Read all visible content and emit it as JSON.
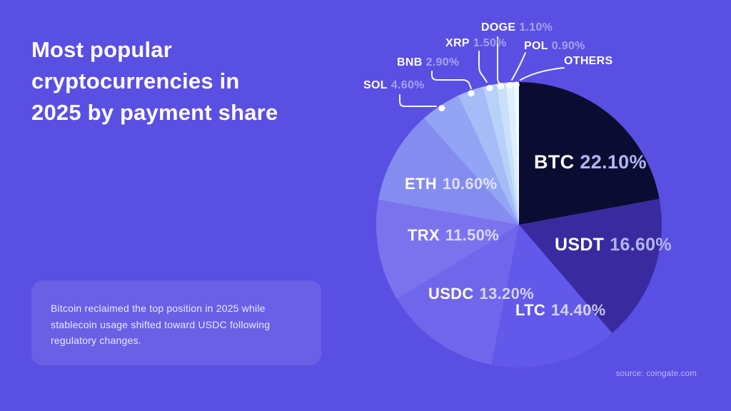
{
  "page": {
    "title_lines": [
      "Most popular",
      "cryptocurrencies in",
      "2025 by payment share"
    ],
    "note": "Bitcoin reclaimed the top position in 2025 while stablecoin usage shifted toward USDC following regulatory changes.",
    "source": "source: coingate.com",
    "colors": {
      "background": "#5a4fe3",
      "note_background": "rgba(255,255,255,0.10)",
      "title_text": "#ffffff",
      "percent_text_outside": "#a7a0ef",
      "percent_text_inside": "#b2b6f4"
    }
  },
  "chart_data": {
    "type": "pie",
    "title": "Most popular cryptocurrencies in 2025 by payment share",
    "unit": "%",
    "start_angle": "12 o'clock, clockwise",
    "legend_position": "labels on/around slices",
    "source": "coingate.com",
    "series": [
      {
        "label": "BTC",
        "value": 22.1,
        "display": "22.10%",
        "color": "#0b0c31",
        "label_placement": "inside"
      },
      {
        "label": "USDT",
        "value": 16.6,
        "display": "16.60%",
        "color": "#392b9f",
        "label_placement": "inside"
      },
      {
        "label": "LTC",
        "value": 14.4,
        "display": "14.40%",
        "color": "#6259ea",
        "label_placement": "inside"
      },
      {
        "label": "USDC",
        "value": 13.2,
        "display": "13.20%",
        "color": "#6f66ec",
        "label_placement": "inside"
      },
      {
        "label": "TRX",
        "value": 11.5,
        "display": "11.50%",
        "color": "#7b73ee",
        "label_placement": "inside"
      },
      {
        "label": "ETH",
        "value": 10.6,
        "display": "10.60%",
        "color": "#858cf0",
        "label_placement": "inside"
      },
      {
        "label": "SOL",
        "value": 4.6,
        "display": "4.60%",
        "color": "#92a4f3",
        "label_placement": "outside"
      },
      {
        "label": "BNB",
        "value": 2.9,
        "display": "2.90%",
        "color": "#a5bcf6",
        "label_placement": "outside"
      },
      {
        "label": "XRP",
        "value": 1.5,
        "display": "1.50%",
        "color": "#b8d1f9",
        "label_placement": "outside"
      },
      {
        "label": "DOGE",
        "value": 1.1,
        "display": "1.10%",
        "color": "#cae1fb",
        "label_placement": "outside"
      },
      {
        "label": "POL",
        "value": 0.9,
        "display": "0.90%",
        "color": "#def0fd",
        "label_placement": "outside"
      },
      {
        "label": "OTHERS",
        "value": 0.6,
        "display": "",
        "color": "#f0fbff",
        "label_placement": "outside"
      }
    ]
  }
}
